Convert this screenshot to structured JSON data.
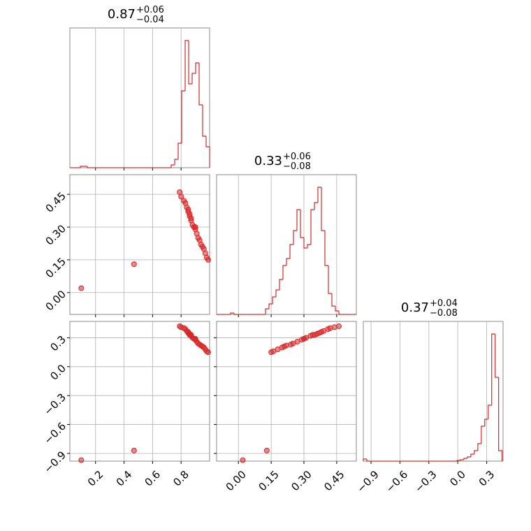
{
  "chart_data": {
    "type": "corner",
    "color": "#d62728",
    "grid": true,
    "parameters": [
      {
        "title": "0.87",
        "plus": "+0.06",
        "minus": "−0.04",
        "lim": [
          0.02,
          1.0
        ],
        "ticks": [
          0.2,
          0.4,
          0.6,
          0.8
        ],
        "bins": [
          0.02,
          0.0445,
          0.069,
          0.0935,
          0.118,
          0.1425,
          0.167,
          0.1915,
          0.216,
          0.2405,
          0.265,
          0.2895,
          0.314,
          0.3385,
          0.363,
          0.3875,
          0.412,
          0.4365,
          0.461,
          0.4855,
          0.51,
          0.5345,
          0.559,
          0.5835,
          0.608,
          0.6325,
          0.657,
          0.6815,
          0.706,
          0.7305,
          0.755,
          0.7795,
          0.804,
          0.8285,
          0.853,
          0.8775,
          0.902,
          0.9265,
          0.951,
          0.9755,
          1.0
        ],
        "counts": [
          0,
          0,
          0,
          2,
          2,
          0,
          0,
          0,
          0,
          0,
          0,
          0,
          0,
          0,
          0,
          0,
          0,
          0,
          0,
          0,
          0,
          0,
          0,
          0,
          0,
          0,
          0,
          0,
          0,
          4,
          12,
          35,
          110,
          182,
          120,
          135,
          150,
          90,
          45,
          30
        ],
        "hist_ylim": [
          0,
          200
        ],
        "samples": [
          0.82,
          0.83,
          0.84,
          0.85,
          0.85,
          0.86,
          0.86,
          0.87,
          0.87,
          0.88,
          0.89,
          0.9,
          0.9,
          0.91,
          0.92,
          0.93,
          0.94,
          0.95,
          0.96,
          0.97,
          0.98,
          0.8,
          0.79,
          0.99,
          0.1,
          0.47
        ]
      },
      {
        "title": "0.33",
        "plus": "+0.06",
        "minus": "−0.08",
        "lim": [
          -0.1,
          0.54
        ],
        "ticks": [
          {
            "value": 0,
            "label": "0.00"
          },
          0.15,
          {
            "value": 0.3,
            "label": "0.30"
          },
          0.45
        ],
        "bins": [
          -0.1,
          -0.084,
          -0.068,
          -0.052,
          -0.036,
          -0.02,
          -0.004,
          0.012,
          0.028,
          0.044,
          0.06,
          0.076,
          0.092,
          0.108,
          0.124,
          0.14,
          0.156,
          0.172,
          0.188,
          0.204,
          0.22,
          0.236,
          0.252,
          0.268,
          0.284,
          0.3,
          0.316,
          0.332,
          0.348,
          0.364,
          0.38,
          0.396,
          0.412,
          0.428,
          0.444,
          0.46,
          0.476,
          0.492,
          0.508,
          0.524,
          0.54
        ],
        "counts": [
          0,
          0,
          0,
          0,
          2,
          0,
          0,
          0,
          0,
          0,
          0,
          0,
          0,
          0,
          8,
          15,
          25,
          35,
          50,
          70,
          80,
          100,
          120,
          150,
          110,
          95,
          100,
          150,
          160,
          182,
          120,
          70,
          30,
          12,
          5,
          0,
          0,
          0,
          0,
          0
        ],
        "hist_ylim": [
          0,
          200
        ],
        "samples": [
          0.42,
          0.41,
          0.39,
          0.38,
          0.37,
          0.36,
          0.35,
          0.34,
          0.33,
          0.31,
          0.3,
          0.29,
          0.3,
          0.27,
          0.25,
          0.24,
          0.22,
          0.21,
          0.2,
          0.18,
          0.16,
          0.44,
          0.46,
          0.15,
          0.02,
          0.13
        ]
      },
      {
        "title": "0.37",
        "plus": "+0.04",
        "minus": "−0.08",
        "lim": [
          -0.98,
          0.47
        ],
        "ticks": [
          {
            "value": -0.9,
            "label": "−0.9"
          },
          {
            "value": -0.6,
            "label": "−0.6"
          },
          {
            "value": -0.3,
            "label": "−0.3"
          },
          {
            "value": 0,
            "label": "0.0"
          },
          0.3
        ],
        "bins": [
          -0.98,
          -0.944,
          -0.908,
          -0.872,
          -0.836,
          -0.8,
          -0.764,
          -0.728,
          -0.692,
          -0.656,
          -0.62,
          -0.584,
          -0.548,
          -0.512,
          -0.476,
          -0.44,
          -0.404,
          -0.368,
          -0.332,
          -0.296,
          -0.26,
          -0.224,
          -0.188,
          -0.152,
          -0.116,
          -0.08,
          -0.044,
          -0.008,
          0.028,
          0.064,
          0.1,
          0.136,
          0.172,
          0.208,
          0.244,
          0.28,
          0.316,
          0.352,
          0.388,
          0.424,
          0.46
        ],
        "counts": [
          3,
          0,
          0,
          0,
          0,
          0,
          0,
          0,
          0,
          0,
          0,
          0,
          0,
          0,
          0,
          0,
          0,
          0,
          0,
          0,
          0,
          0,
          0,
          0,
          0,
          0,
          0,
          1,
          2,
          4,
          6,
          10,
          15,
          25,
          50,
          60,
          80,
          182,
          120,
          15
        ],
        "hist_ylim": [
          0,
          200
        ],
        "samples": [
          0.4,
          0.39,
          0.37,
          0.36,
          0.35,
          0.34,
          0.33,
          0.33,
          0.32,
          0.3,
          0.29,
          0.28,
          0.29,
          0.26,
          0.24,
          0.23,
          0.22,
          0.21,
          0.2,
          0.18,
          0.16,
          0.41,
          0.42,
          0.15,
          -0.97,
          -0.87
        ]
      }
    ]
  }
}
